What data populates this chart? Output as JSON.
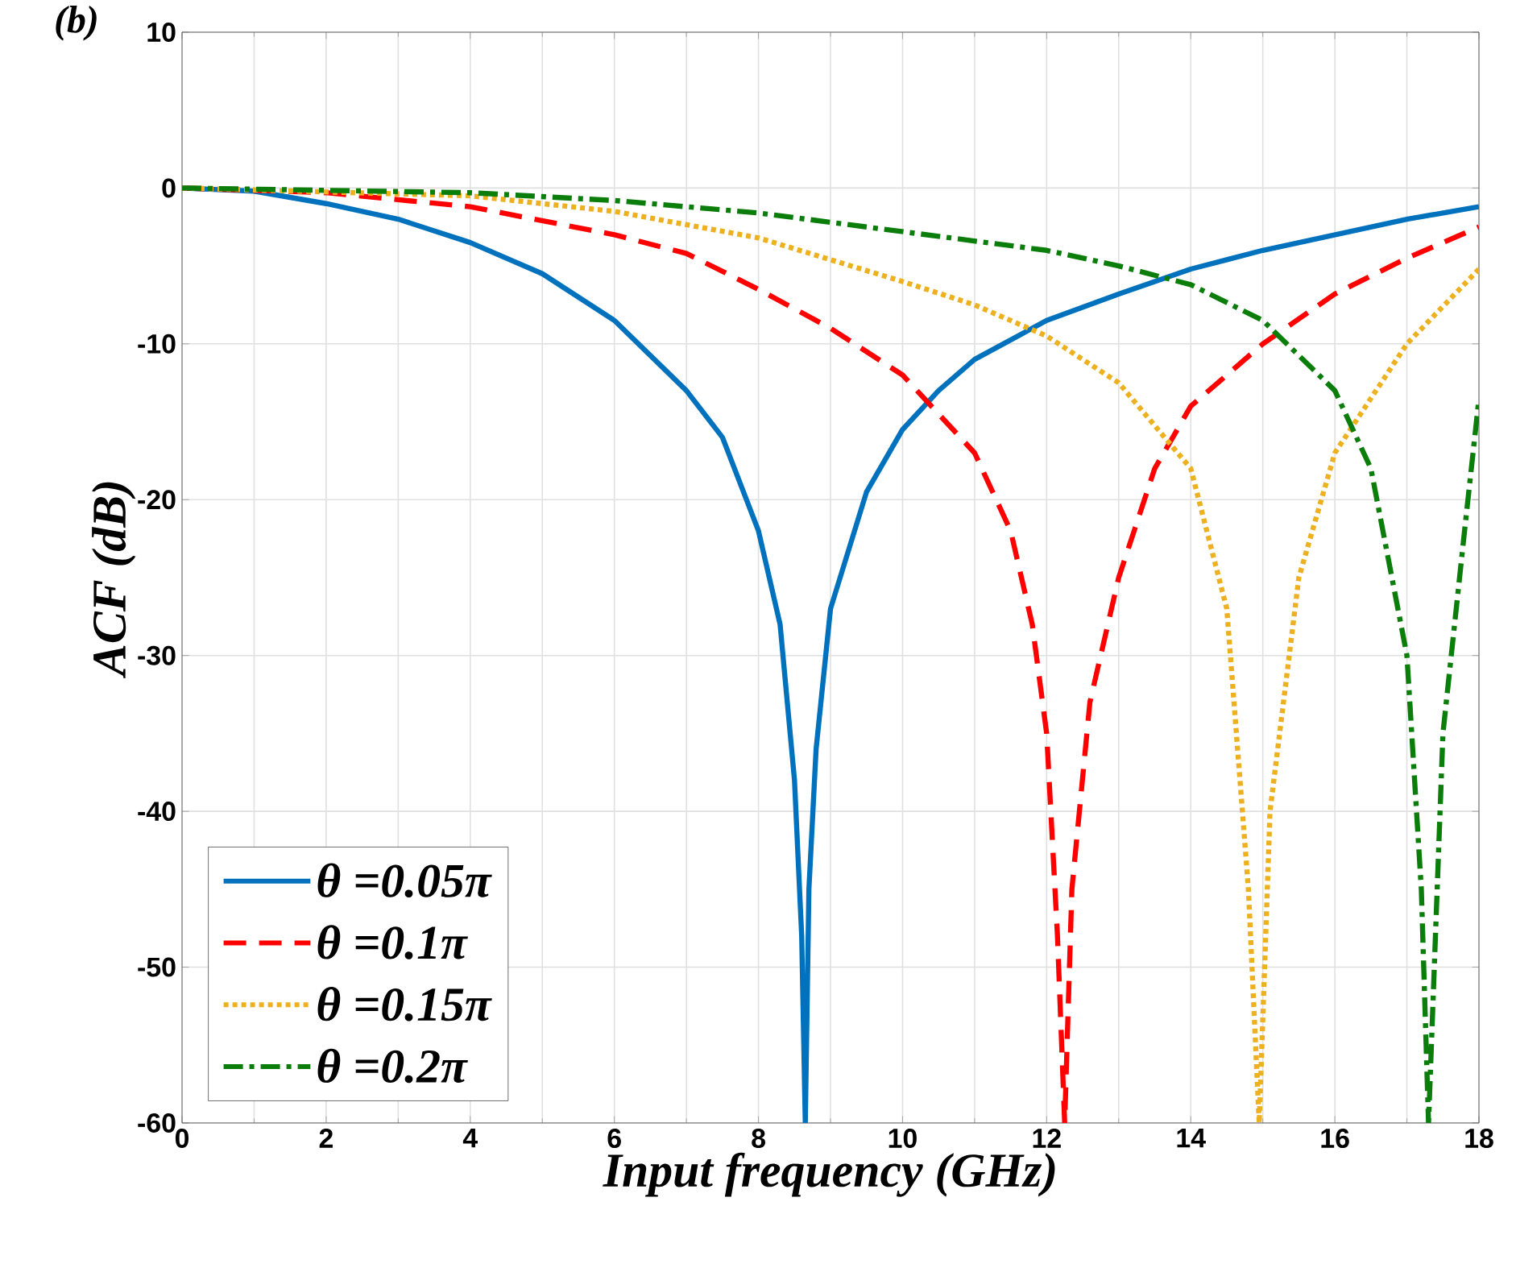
{
  "chart_data": {
    "type": "line",
    "annotations": [
      "(b)"
    ],
    "xlabel": "Input frequency (GHz)",
    "ylabel": "ACF (dB)",
    "xlim": [
      0,
      18
    ],
    "ylim": [
      -60,
      10
    ],
    "xticks": [
      0,
      2,
      4,
      6,
      8,
      10,
      12,
      14,
      16,
      18
    ],
    "yticks": [
      -60,
      -50,
      -40,
      -30,
      -20,
      -10,
      0,
      10
    ],
    "grid": true,
    "legend": "bottom left",
    "series": [
      {
        "name": "*θ =0.05π*",
        "color": "#0072bd",
        "line_style": "solid",
        "x": [
          0,
          1,
          2,
          3,
          4,
          5,
          6,
          7,
          7.5,
          8,
          8.3,
          8.5,
          8.6,
          8.65,
          8.7,
          8.8,
          9,
          9.5,
          10,
          10.5,
          11,
          12,
          13,
          14,
          15,
          16,
          17,
          18
        ],
        "values": [
          0,
          -0.2,
          -1,
          -2,
          -3.5,
          -5.5,
          -8.5,
          -13,
          -16,
          -22,
          -28,
          -38,
          -48,
          -60,
          -45,
          -36,
          -27,
          -19.5,
          -15.5,
          -13,
          -11,
          -8.5,
          -6.8,
          -5.2,
          -4,
          -3,
          -2,
          -1.2
        ]
      },
      {
        "name": "*θ =0.1π*",
        "color": "#ff0000",
        "line_style": "dashed",
        "x": [
          0,
          2,
          4,
          6,
          7,
          8,
          9,
          10,
          11,
          11.5,
          11.8,
          12,
          12.15,
          12.25,
          12.35,
          12.6,
          13,
          13.5,
          14,
          15,
          16,
          17,
          18
        ],
        "values": [
          0,
          -0.3,
          -1.2,
          -3,
          -4.2,
          -6.5,
          -9,
          -12,
          -17,
          -22,
          -28,
          -35,
          -48,
          -60,
          -45,
          -33,
          -25,
          -18,
          -14,
          -10,
          -6.8,
          -4.5,
          -2.5
        ]
      },
      {
        "name": "*θ =0.15π*",
        "color": "#edb120",
        "line_style": "dotted",
        "x": [
          0,
          4,
          6,
          8,
          10,
          11,
          12,
          13,
          14,
          14.5,
          14.8,
          14.95,
          15.1,
          15.5,
          16,
          17,
          18
        ],
        "values": [
          0,
          -0.5,
          -1.5,
          -3.2,
          -6,
          -7.5,
          -9.5,
          -12.5,
          -18,
          -27,
          -45,
          -60,
          -40,
          -25,
          -17,
          -10,
          -5.2
        ]
      },
      {
        "name": "*θ =0.2π*",
        "color": "#0a7d0a",
        "line_style": "dashdot",
        "x": [
          0,
          4,
          6,
          8,
          10,
          12,
          13,
          14,
          15,
          16,
          16.5,
          17,
          17.2,
          17.3,
          17.5,
          17.8,
          18
        ],
        "values": [
          0,
          -0.3,
          -0.8,
          -1.6,
          -2.8,
          -4,
          -5,
          -6.2,
          -8.5,
          -13,
          -18,
          -30,
          -45,
          -60,
          -35,
          -22,
          -13.5
        ]
      }
    ]
  }
}
